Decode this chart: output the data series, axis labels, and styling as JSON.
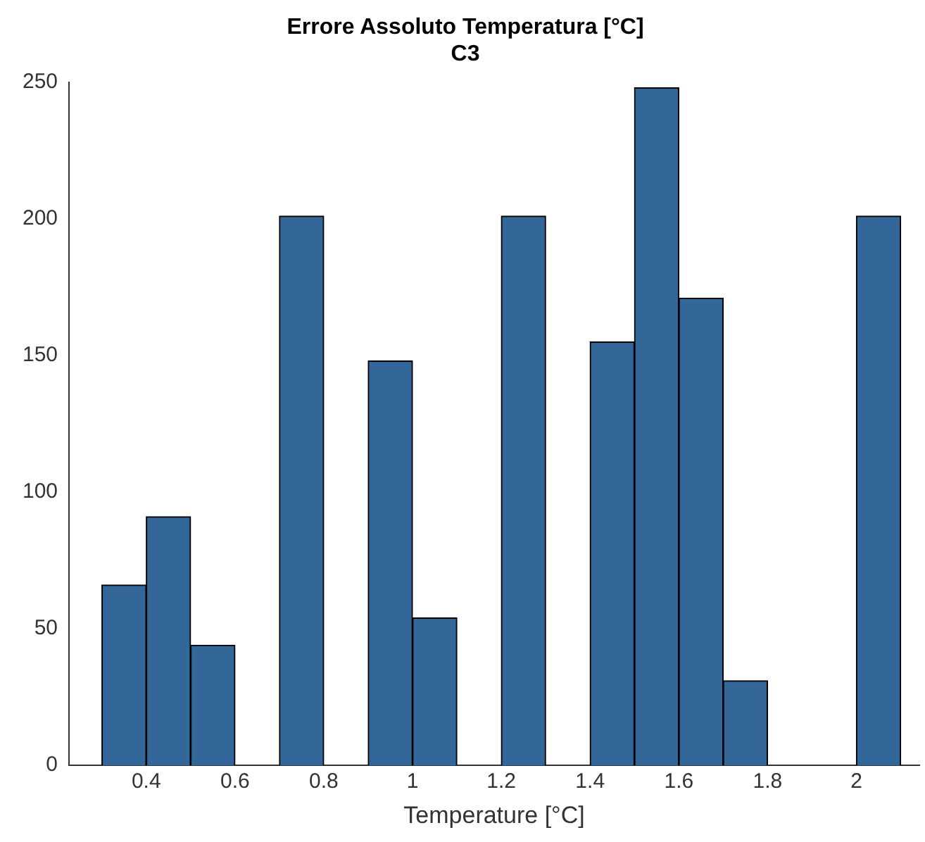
{
  "chart_data": {
    "type": "histogram",
    "title": "Errore Assoluto Temperatura [°C]",
    "subtitle": "C3",
    "xlabel": "Temperature [°C]",
    "bins": [
      0.3,
      0.4,
      0.5,
      0.6,
      0.7,
      0.8,
      0.9,
      1.0,
      1.1,
      1.2,
      1.3,
      1.4,
      1.5,
      1.6,
      1.7,
      1.8,
      1.9,
      2.0,
      2.1
    ],
    "values": [
      66,
      91,
      44,
      0,
      201,
      0,
      148,
      54,
      0,
      201,
      0,
      155,
      248,
      171,
      31,
      0,
      0,
      201
    ],
    "color": "#336699",
    "xlim": [
      0.226,
      2.142
    ],
    "xticks": [
      0.4,
      0.6,
      0.8,
      1,
      1.2,
      1.4,
      1.6,
      1.8,
      2
    ],
    "ylim": [
      0,
      250
    ],
    "yticks": [
      0,
      50,
      100,
      150,
      200,
      250
    ],
    "grid": false,
    "legend": false
  }
}
